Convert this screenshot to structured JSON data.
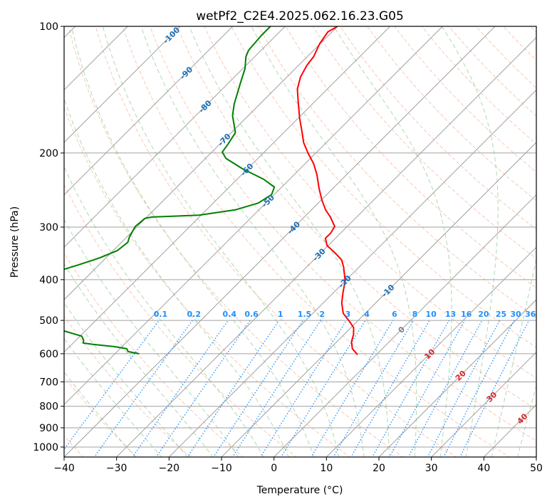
{
  "chart_data": {
    "type": "line",
    "title": "wetPf2_C2E4.2025.062.16.23.G05",
    "xlabel": "Temperature (°C)",
    "ylabel": "Pressure (hPa)",
    "xlim": [
      -40,
      50
    ],
    "ylim": [
      1056,
      100
    ],
    "yscale": "log",
    "skew_deg": 45,
    "grid": true,
    "x_ticks": [
      -40,
      -30,
      -20,
      -10,
      0,
      10,
      20,
      30,
      40,
      50
    ],
    "y_ticks": [
      100,
      200,
      300,
      400,
      500,
      600,
      700,
      800,
      900,
      1000
    ],
    "isotherm_labels": [
      -100,
      -90,
      -80,
      -70,
      -60,
      -50,
      -40,
      -30,
      -20,
      -10,
      0,
      10,
      20,
      30,
      40
    ],
    "mixing_ratio_labels": [
      "0.1",
      "0.2",
      "0.4",
      "0.6",
      "1",
      "1.5",
      "2",
      "3",
      "4",
      "6",
      "8",
      "10",
      "13",
      "16",
      "20",
      "25",
      "30",
      "36"
    ],
    "colors": {
      "temperature": "#ff0000",
      "dewpoint": "#008000",
      "isotherm": "#a0a0a0",
      "dry_adiabat": "#f4a582",
      "moist_adiabat": "#8fc88f",
      "mixing_ratio": "#1e90ff",
      "cold_label": "#1f6fb4",
      "warm_label": "#d62728",
      "zero_label": "#808080"
    },
    "series": [
      {
        "name": "temperature",
        "pressure": [
          100,
          103,
          110,
          118,
          124,
          132,
          141,
          152,
          165,
          178,
          189,
          200,
          212,
          225,
          243,
          258,
          273,
          284,
          299,
          310,
          319,
          332,
          345,
          359,
          373,
          403,
          428,
          454,
          481,
          500,
          520,
          540,
          562,
          584,
          603
        ],
        "temperature": [
          -70.0,
          -70.8,
          -70.1,
          -68.8,
          -68.4,
          -67.4,
          -65.7,
          -62.9,
          -59.8,
          -56.7,
          -54.3,
          -51.5,
          -48.4,
          -45.7,
          -42.6,
          -40.0,
          -37.3,
          -35.0,
          -32.4,
          -31.9,
          -31.9,
          -30.2,
          -27.4,
          -24.7,
          -23.0,
          -20.0,
          -18.3,
          -16.5,
          -14.2,
          -11.8,
          -9.5,
          -8.2,
          -7.2,
          -5.7,
          -3.6
        ]
      },
      {
        "name": "dewpoint_upper",
        "pressure": [
          100,
          105,
          114,
          118,
          126,
          137,
          153,
          163,
          179,
          191,
          199,
          206,
          218,
          231,
          241,
          251,
          263,
          273,
          281,
          284,
          286,
          299,
          317,
          326,
          341,
          355,
          369,
          378
        ],
        "temperature": [
          -82.8,
          -82.8,
          -82.4,
          -81.7,
          -79.6,
          -77.6,
          -74.9,
          -73.0,
          -69.2,
          -68.4,
          -68.0,
          -66.1,
          -61.0,
          -54.9,
          -51.4,
          -50.5,
          -51.4,
          -54.5,
          -60.4,
          -69.0,
          -70.1,
          -70.4,
          -69.5,
          -68.8,
          -69.2,
          -71.2,
          -73.9,
          -75.8
        ]
      },
      {
        "name": "dewpoint_lower",
        "pressure": [
          530,
          545,
          558,
          566,
          570,
          577,
          584,
          593,
          600
        ],
        "temperature": [
          -64.0,
          -59.7,
          -58.5,
          -58.1,
          -56.0,
          -51.5,
          -48.7,
          -47.9,
          -45.4
        ]
      }
    ]
  }
}
